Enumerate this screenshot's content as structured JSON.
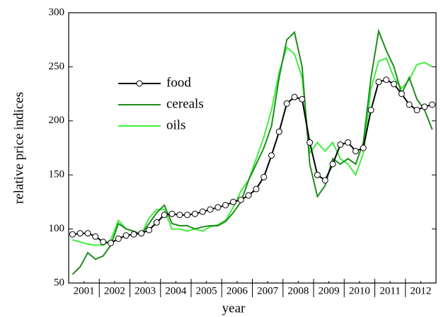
{
  "chart_data": {
    "type": "line",
    "xlabel": "year",
    "ylabel": "relative price indices",
    "xlim": [
      2001,
      2013
    ],
    "ylim": [
      50,
      300
    ],
    "yticks": [
      50,
      100,
      150,
      200,
      250,
      300
    ],
    "xticks": [
      {
        "value": 2001.5,
        "label": "2001"
      },
      {
        "value": 2002.5,
        "label": "2002"
      },
      {
        "value": 2003.5,
        "label": "2003"
      },
      {
        "value": 2004.5,
        "label": "2004"
      },
      {
        "value": 2005.5,
        "label": "2005"
      },
      {
        "value": 2006.5,
        "label": "2006"
      },
      {
        "value": 2007.5,
        "label": "2007"
      },
      {
        "value": 2008.5,
        "label": "2008"
      },
      {
        "value": 2009.5,
        "label": "2009"
      },
      {
        "value": 2010.5,
        "label": "2010"
      },
      {
        "value": 2011.5,
        "label": "2011"
      },
      {
        "value": 2012.5,
        "label": "2012"
      }
    ],
    "legend_loc": "upper left",
    "x": [
      2001.125,
      2001.375,
      2001.625,
      2001.875,
      2002.125,
      2002.375,
      2002.625,
      2002.875,
      2003.125,
      2003.375,
      2003.625,
      2003.875,
      2004.125,
      2004.375,
      2004.625,
      2004.875,
      2005.125,
      2005.375,
      2005.625,
      2005.875,
      2006.125,
      2006.375,
      2006.625,
      2006.875,
      2007.125,
      2007.375,
      2007.625,
      2007.875,
      2008.125,
      2008.375,
      2008.625,
      2008.875,
      2009.125,
      2009.375,
      2009.625,
      2009.875,
      2010.125,
      2010.375,
      2010.625,
      2010.875,
      2011.125,
      2011.375,
      2011.625,
      2011.875,
      2012.125,
      2012.375,
      2012.625,
      2012.875
    ],
    "series": [
      {
        "name": "food",
        "color": "#000000",
        "marker": "circle",
        "values": [
          95,
          96,
          96,
          93,
          88,
          87,
          91,
          94,
          95,
          96,
          99,
          106,
          113,
          114,
          113,
          113,
          114,
          116,
          118,
          120,
          122,
          125,
          127,
          131,
          137,
          148,
          168,
          190,
          216,
          222,
          220,
          180,
          150,
          145,
          160,
          178,
          180,
          172,
          175,
          210,
          236,
          238,
          234,
          225,
          215,
          210,
          213,
          215
        ]
      },
      {
        "name": "cereals",
        "color": "#1e8c1e",
        "values": [
          58,
          65,
          78,
          72,
          75,
          85,
          105,
          100,
          98,
          95,
          105,
          115,
          122,
          105,
          103,
          103,
          100,
          102,
          103,
          103,
          107,
          115,
          125,
          145,
          160,
          175,
          195,
          240,
          275,
          282,
          250,
          160,
          130,
          140,
          165,
          160,
          165,
          160,
          180,
          240,
          283,
          265,
          250,
          225,
          240,
          220,
          210,
          192
        ]
      },
      {
        "name": "oils",
        "color": "#3cf03c",
        "values": [
          90,
          88,
          86,
          85,
          85,
          90,
          108,
          100,
          98,
          95,
          110,
          118,
          118,
          100,
          100,
          98,
          100,
          98,
          102,
          104,
          108,
          120,
          135,
          145,
          165,
          185,
          210,
          245,
          268,
          262,
          240,
          170,
          180,
          172,
          180,
          165,
          160,
          150,
          170,
          230,
          255,
          258,
          240,
          230,
          238,
          252,
          254,
          250
        ]
      }
    ]
  }
}
